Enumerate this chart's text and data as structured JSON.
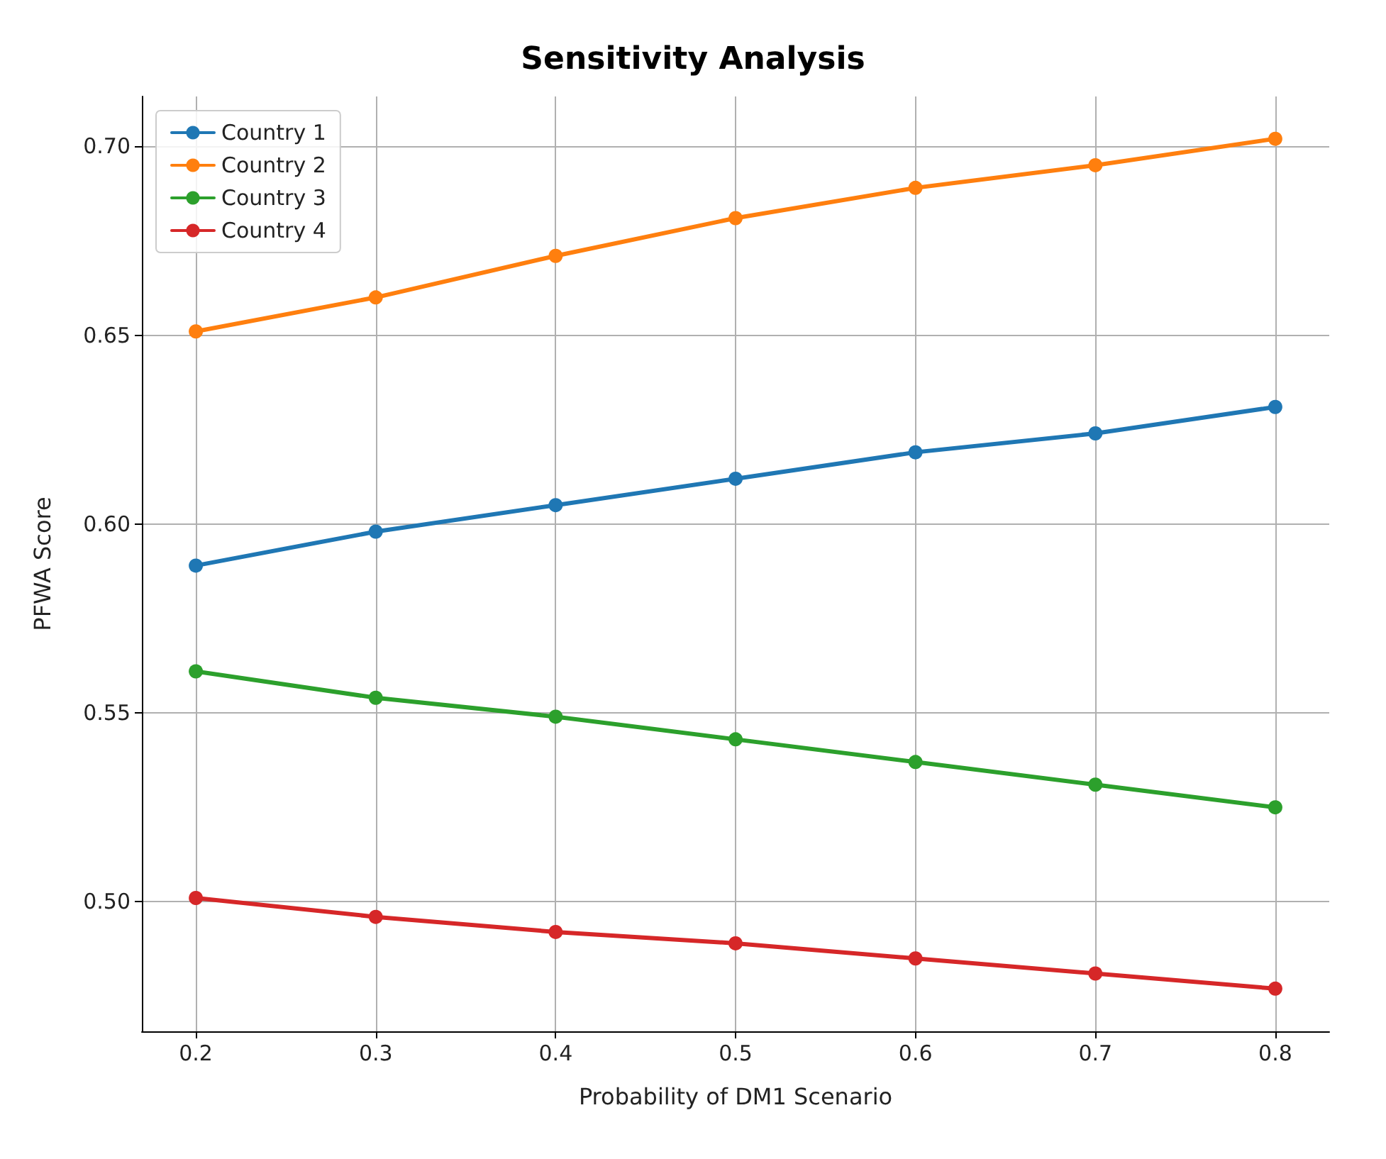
{
  "chart_data": {
    "type": "line",
    "title": "Sensitivity Analysis",
    "xlabel": "Probability of DM1 Scenario",
    "ylabel": "PFWA Score",
    "x": [
      0.2,
      0.3,
      0.4,
      0.5,
      0.6,
      0.7,
      0.8
    ],
    "series": [
      {
        "name": "Country 1",
        "color": "#1f77b4",
        "values": [
          0.589,
          0.598,
          0.605,
          0.612,
          0.619,
          0.624,
          0.631
        ]
      },
      {
        "name": "Country 2",
        "color": "#ff7f0e",
        "values": [
          0.651,
          0.66,
          0.671,
          0.681,
          0.689,
          0.695,
          0.702
        ]
      },
      {
        "name": "Country 3",
        "color": "#2ca02c",
        "values": [
          0.561,
          0.554,
          0.549,
          0.543,
          0.537,
          0.531,
          0.525
        ]
      },
      {
        "name": "Country 4",
        "color": "#d62728",
        "values": [
          0.501,
          0.496,
          0.492,
          0.489,
          0.485,
          0.481,
          0.477
        ]
      }
    ],
    "xlim": [
      0.17,
      0.83
    ],
    "xticks": [
      0.2,
      0.3,
      0.4,
      0.5,
      0.6,
      0.7,
      0.8
    ],
    "ylim": [
      0.4657,
      0.7132
    ],
    "yticks": [
      {
        "value": 0.5,
        "label": "0.50"
      },
      {
        "value": 0.55,
        "label": "0.55"
      },
      {
        "value": 0.6,
        "label": "0.60"
      },
      {
        "value": 0.65,
        "label": "0.65"
      },
      {
        "value": 0.7,
        "label": "0.70"
      }
    ],
    "grid": true,
    "legend": "top left",
    "marker": "circle",
    "line_style": "solid"
  }
}
